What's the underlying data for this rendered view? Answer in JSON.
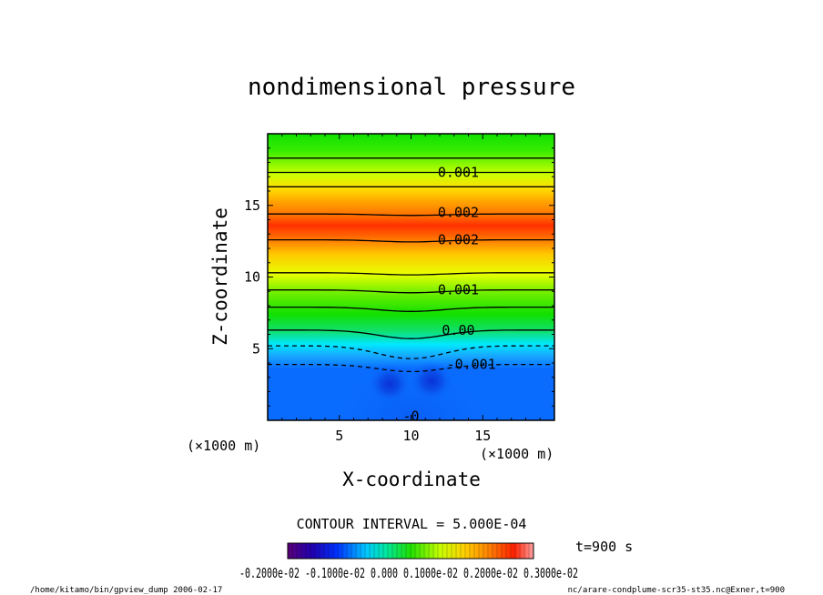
{
  "title": "nondimensional pressure",
  "footer_left": "/home/kitamo/bin/gpview_dump  2006-02-17",
  "footer_right": "nc/arare-condplume-scr35-st35.nc@Exner,t=900",
  "contour_interval_label": "CONTOUR INTERVAL = 5.000E-04",
  "time_label": "t=900 s",
  "chart_data": {
    "type": "heatmap",
    "title": "nondimensional pressure",
    "xlabel": "X-coordinate",
    "ylabel": "Z-coordinate",
    "x_unit": "(×1000 m)",
    "y_unit": "(×1000 m)",
    "xlim": [
      0,
      20
    ],
    "ylim": [
      0,
      20
    ],
    "x_ticks": [
      5,
      10,
      15
    ],
    "y_ticks": [
      5,
      10,
      15
    ],
    "grid": false,
    "contour_interval": 0.0005,
    "contour_labels": [
      {
        "text": "0.001",
        "x": 13.3,
        "y": 17.3
      },
      {
        "text": "0.002",
        "x": 13.3,
        "y": 14.5
      },
      {
        "text": "0.002",
        "x": 13.3,
        "y": 12.6
      },
      {
        "text": "0.001",
        "x": 13.3,
        "y": 9.1
      },
      {
        "text": "0.00",
        "x": 13.3,
        "y": 6.3
      },
      {
        "text": "-0.001",
        "x": 14.2,
        "y": 3.9
      },
      {
        "text": "-0",
        "x": 10.0,
        "y": 0.3
      }
    ],
    "contours": [
      {
        "level": 0.0005,
        "y": 18.3,
        "dip": 0.0
      },
      {
        "level": 0.001,
        "y": 17.3,
        "dip": 0.0
      },
      {
        "level": 0.0015,
        "y": 16.3,
        "dip": 0.0
      },
      {
        "level": 0.002,
        "y": 14.4,
        "dip": 0.1
      },
      {
        "level": 0.0025,
        "y": 12.6,
        "dip": 0.15
      },
      {
        "level": 0.002,
        "y": 10.3,
        "dip": 0.15
      },
      {
        "level": 0.0015,
        "y": 9.1,
        "dip": 0.2
      },
      {
        "level": 0.001,
        "y": 7.9,
        "dip": 0.3
      },
      {
        "level": 0.0005,
        "y": 6.3,
        "dip": 0.6
      },
      {
        "level": -0.0005,
        "y": 5.2,
        "dip": 0.9
      },
      {
        "level": -0.001,
        "y": 3.9,
        "dip": 0.5
      }
    ],
    "colorbar": {
      "min": -0.002,
      "max": 0.003,
      "label": "-0.2000e-02 -0.1000e-02 0.000 0.1000e-02 0.2000e-02 0.3000e-02"
    }
  },
  "colors": {
    "red": "#ff3000",
    "orange": "#ffa000",
    "yellow": "#f0ff00",
    "green": "#10e000",
    "cyan": "#00e8ff",
    "blue": "#0a6cff",
    "dark_blue": "#0a3ce0"
  }
}
